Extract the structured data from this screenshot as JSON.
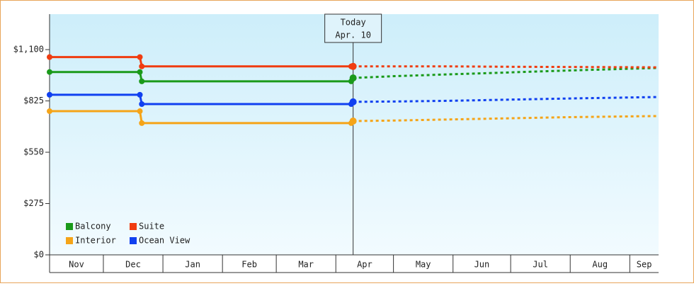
{
  "chart_data": {
    "type": "line",
    "xlim": [
      0,
      317
    ],
    "xticks": [
      {
        "value": 0,
        "label": "Nov"
      },
      {
        "value": 28,
        "label": "Dec"
      },
      {
        "value": 59,
        "label": "Jan"
      },
      {
        "value": 90,
        "label": "Feb"
      },
      {
        "value": 118,
        "label": "Mar"
      },
      {
        "value": 149,
        "label": "Apr"
      },
      {
        "value": 179,
        "label": "May"
      },
      {
        "value": 210,
        "label": "Jun"
      },
      {
        "value": 240,
        "label": "Jul"
      },
      {
        "value": 271,
        "label": "Aug"
      },
      {
        "value": 302,
        "label": "Sep"
      }
    ],
    "ylim": [
      0,
      1290
    ],
    "yticks": [
      {
        "value": 0,
        "label": "$0"
      },
      {
        "value": 275,
        "label": "$275"
      },
      {
        "value": 550,
        "label": "$550"
      },
      {
        "value": 825,
        "label": "$825"
      },
      {
        "value": 1100,
        "label": "$1,100"
      }
    ],
    "annotation": {
      "x": 158,
      "lines": [
        "Today",
        "Apr. 10"
      ]
    },
    "series": [
      {
        "name": "Balcony",
        "color": "#1a9a1a",
        "x": [
          0,
          47,
          48,
          157
        ],
        "values": [
          980,
          980,
          930,
          930
        ],
        "forecast_x": [
          158,
          180,
          210,
          240,
          270,
          317
        ],
        "forecast_values": [
          948,
          958,
          968,
          978,
          988,
          1002
        ]
      },
      {
        "name": "Suite",
        "color": "#f03c10",
        "x": [
          0,
          47,
          48,
          157
        ],
        "values": [
          1060,
          1060,
          1010,
          1010
        ],
        "forecast_x": [
          158,
          180,
          210,
          240,
          270,
          317
        ],
        "forecast_values": [
          1010,
          1010,
          1010,
          1008,
          1007,
          1005
        ]
      },
      {
        "name": "Interior",
        "color": "#f5a418",
        "x": [
          0,
          47,
          48,
          157
        ],
        "values": [
          770,
          770,
          706,
          706
        ],
        "forecast_x": [
          158,
          180,
          210,
          240,
          270,
          317
        ],
        "forecast_values": [
          717,
          720,
          726,
          732,
          738,
          744
        ]
      },
      {
        "name": "Ocean View",
        "color": "#1040f0",
        "x": [
          0,
          47,
          48,
          157
        ],
        "values": [
          858,
          858,
          808,
          808
        ],
        "forecast_x": [
          158,
          180,
          210,
          240,
          270,
          317
        ],
        "forecast_values": [
          820,
          822,
          826,
          832,
          838,
          846
        ]
      }
    ]
  }
}
